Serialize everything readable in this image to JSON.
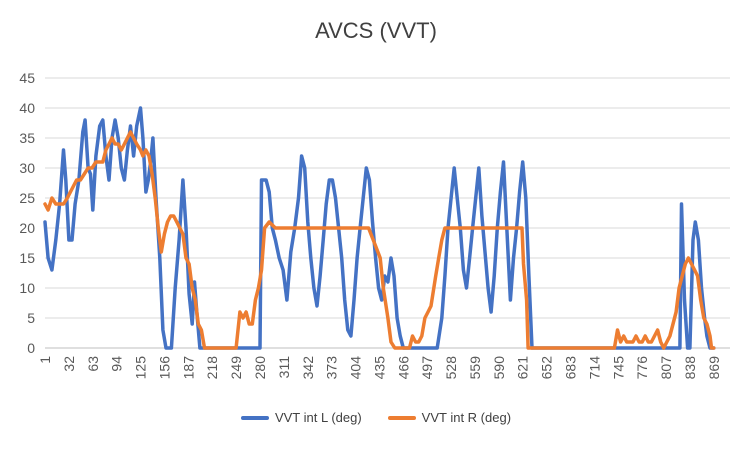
{
  "chart_data": {
    "type": "line",
    "title": "AVCS (VVT)",
    "xlabel": "",
    "ylabel": "",
    "ylim": [
      0,
      45
    ],
    "yticks": [
      0,
      5,
      10,
      15,
      20,
      25,
      30,
      35,
      40,
      45
    ],
    "xlim": [
      1,
      890
    ],
    "xticks": [
      1,
      32,
      63,
      94,
      125,
      156,
      187,
      218,
      249,
      280,
      311,
      342,
      373,
      404,
      435,
      466,
      497,
      528,
      559,
      590,
      621,
      652,
      683,
      714,
      745,
      776,
      807,
      838,
      869
    ],
    "grid": "horizontal",
    "legend": "bottom",
    "series": [
      {
        "name": "VVT int L (deg)",
        "color": "#4472C4",
        "points": [
          [
            1,
            21
          ],
          [
            5,
            15
          ],
          [
            10,
            13
          ],
          [
            15,
            18
          ],
          [
            20,
            24
          ],
          [
            25,
            33
          ],
          [
            28,
            28
          ],
          [
            32,
            18
          ],
          [
            36,
            18
          ],
          [
            40,
            24
          ],
          [
            45,
            28
          ],
          [
            50,
            36
          ],
          [
            53,
            38
          ],
          [
            57,
            30
          ],
          [
            60,
            29
          ],
          [
            63,
            23
          ],
          [
            67,
            32
          ],
          [
            72,
            37
          ],
          [
            76,
            38
          ],
          [
            80,
            32
          ],
          [
            84,
            28
          ],
          [
            88,
            35
          ],
          [
            92,
            38
          ],
          [
            96,
            35
          ],
          [
            100,
            30
          ],
          [
            104,
            28
          ],
          [
            108,
            33
          ],
          [
            112,
            37
          ],
          [
            116,
            32
          ],
          [
            120,
            37
          ],
          [
            125,
            40
          ],
          [
            128,
            35
          ],
          [
            132,
            26
          ],
          [
            135,
            28
          ],
          [
            138,
            31
          ],
          [
            141,
            35
          ],
          [
            145,
            25
          ],
          [
            150,
            15
          ],
          [
            154,
            3
          ],
          [
            158,
            0
          ],
          [
            165,
            0
          ],
          [
            170,
            10
          ],
          [
            175,
            18
          ],
          [
            180,
            28
          ],
          [
            184,
            20
          ],
          [
            188,
            9
          ],
          [
            192,
            4
          ],
          [
            195,
            11
          ],
          [
            198,
            6
          ],
          [
            202,
            0
          ],
          [
            218,
            0
          ],
          [
            249,
            0
          ],
          [
            280,
            0
          ],
          [
            282,
            28
          ],
          [
            288,
            28
          ],
          [
            292,
            26
          ],
          [
            296,
            20
          ],
          [
            300,
            18
          ],
          [
            305,
            15
          ],
          [
            310,
            13
          ],
          [
            315,
            8
          ],
          [
            320,
            16
          ],
          [
            325,
            20
          ],
          [
            330,
            25
          ],
          [
            334,
            32
          ],
          [
            338,
            30
          ],
          [
            342,
            21
          ],
          [
            346,
            15
          ],
          [
            350,
            10
          ],
          [
            354,
            7
          ],
          [
            358,
            12
          ],
          [
            362,
            18
          ],
          [
            366,
            24
          ],
          [
            370,
            28
          ],
          [
            374,
            28
          ],
          [
            378,
            25
          ],
          [
            382,
            20
          ],
          [
            386,
            15
          ],
          [
            390,
            8
          ],
          [
            394,
            3
          ],
          [
            398,
            2
          ],
          [
            402,
            8
          ],
          [
            406,
            15
          ],
          [
            410,
            20
          ],
          [
            414,
            25
          ],
          [
            418,
            30
          ],
          [
            422,
            28
          ],
          [
            426,
            21
          ],
          [
            430,
            15
          ],
          [
            434,
            10
          ],
          [
            438,
            8
          ],
          [
            442,
            12
          ],
          [
            446,
            11
          ],
          [
            450,
            15
          ],
          [
            454,
            12
          ],
          [
            458,
            5
          ],
          [
            462,
            2
          ],
          [
            466,
            0
          ],
          [
            497,
            0
          ],
          [
            510,
            0
          ],
          [
            516,
            5
          ],
          [
            520,
            12
          ],
          [
            524,
            20
          ],
          [
            528,
            25
          ],
          [
            532,
            30
          ],
          [
            536,
            25
          ],
          [
            540,
            20
          ],
          [
            544,
            13
          ],
          [
            548,
            10
          ],
          [
            552,
            15
          ],
          [
            556,
            20
          ],
          [
            560,
            25
          ],
          [
            564,
            30
          ],
          [
            568,
            22
          ],
          [
            572,
            16
          ],
          [
            576,
            10
          ],
          [
            580,
            6
          ],
          [
            584,
            12
          ],
          [
            588,
            20
          ],
          [
            592,
            26
          ],
          [
            596,
            31
          ],
          [
            600,
            21
          ],
          [
            605,
            8
          ],
          [
            609,
            15
          ],
          [
            613,
            20
          ],
          [
            617,
            26
          ],
          [
            621,
            31
          ],
          [
            625,
            25
          ],
          [
            629,
            12
          ],
          [
            633,
            0
          ],
          [
            652,
            0
          ],
          [
            683,
            0
          ],
          [
            714,
            0
          ],
          [
            745,
            0
          ],
          [
            776,
            0
          ],
          [
            807,
            0
          ],
          [
            825,
            0
          ],
          [
            827,
            24
          ],
          [
            831,
            8
          ],
          [
            835,
            0
          ],
          [
            838,
            0
          ],
          [
            842,
            18
          ],
          [
            845,
            21
          ],
          [
            849,
            18
          ],
          [
            853,
            10
          ],
          [
            857,
            5
          ],
          [
            860,
            2
          ],
          [
            864,
            0
          ],
          [
            869,
            0
          ]
        ]
      },
      {
        "name": "VVT int R (deg)",
        "color": "#ED7D31",
        "points": [
          [
            1,
            24
          ],
          [
            5,
            23
          ],
          [
            10,
            25
          ],
          [
            15,
            24
          ],
          [
            20,
            24
          ],
          [
            25,
            24
          ],
          [
            30,
            25
          ],
          [
            34,
            26
          ],
          [
            38,
            27
          ],
          [
            42,
            28
          ],
          [
            47,
            28
          ],
          [
            52,
            29
          ],
          [
            57,
            30
          ],
          [
            62,
            30
          ],
          [
            67,
            31
          ],
          [
            72,
            31
          ],
          [
            76,
            31
          ],
          [
            80,
            33
          ],
          [
            84,
            34
          ],
          [
            88,
            35
          ],
          [
            92,
            34
          ],
          [
            96,
            34
          ],
          [
            100,
            33
          ],
          [
            104,
            34
          ],
          [
            108,
            35
          ],
          [
            112,
            36
          ],
          [
            116,
            35
          ],
          [
            120,
            34
          ],
          [
            125,
            33
          ],
          [
            128,
            32
          ],
          [
            132,
            33
          ],
          [
            136,
            32
          ],
          [
            140,
            29
          ],
          [
            144,
            25
          ],
          [
            148,
            20
          ],
          [
            152,
            16
          ],
          [
            156,
            19
          ],
          [
            160,
            21
          ],
          [
            164,
            22
          ],
          [
            168,
            22
          ],
          [
            172,
            21
          ],
          [
            176,
            20
          ],
          [
            180,
            19
          ],
          [
            184,
            15
          ],
          [
            188,
            14
          ],
          [
            192,
            10
          ],
          [
            196,
            8
          ],
          [
            200,
            4
          ],
          [
            204,
            3
          ],
          [
            208,
            0
          ],
          [
            218,
            0
          ],
          [
            249,
            0
          ],
          [
            254,
            6
          ],
          [
            258,
            5
          ],
          [
            262,
            6
          ],
          [
            266,
            4
          ],
          [
            270,
            4
          ],
          [
            274,
            8
          ],
          [
            278,
            10
          ],
          [
            282,
            13
          ],
          [
            286,
            20
          ],
          [
            292,
            21
          ],
          [
            300,
            20
          ],
          [
            311,
            20
          ],
          [
            342,
            20
          ],
          [
            373,
            20
          ],
          [
            404,
            20
          ],
          [
            421,
            20
          ],
          [
            424,
            19
          ],
          [
            430,
            17
          ],
          [
            436,
            15
          ],
          [
            440,
            10
          ],
          [
            446,
            5
          ],
          [
            450,
            1
          ],
          [
            455,
            0
          ],
          [
            466,
            0
          ],
          [
            474,
            0
          ],
          [
            478,
            2
          ],
          [
            482,
            1
          ],
          [
            486,
            1
          ],
          [
            490,
            2
          ],
          [
            494,
            5
          ],
          [
            498,
            6
          ],
          [
            502,
            7
          ],
          [
            508,
            12
          ],
          [
            512,
            15
          ],
          [
            516,
            18
          ],
          [
            520,
            20
          ],
          [
            528,
            20
          ],
          [
            559,
            20
          ],
          [
            590,
            20
          ],
          [
            620,
            20
          ],
          [
            622,
            14
          ],
          [
            626,
            8
          ],
          [
            628,
            0
          ],
          [
            652,
            0
          ],
          [
            683,
            0
          ],
          [
            714,
            0
          ],
          [
            740,
            0
          ],
          [
            744,
            3
          ],
          [
            748,
            1
          ],
          [
            752,
            2
          ],
          [
            756,
            1
          ],
          [
            760,
            1
          ],
          [
            764,
            1
          ],
          [
            768,
            2
          ],
          [
            772,
            1
          ],
          [
            776,
            1
          ],
          [
            780,
            2
          ],
          [
            784,
            1
          ],
          [
            788,
            1
          ],
          [
            792,
            2
          ],
          [
            796,
            3
          ],
          [
            800,
            1
          ],
          [
            804,
            0
          ],
          [
            808,
            1
          ],
          [
            812,
            2
          ],
          [
            816,
            4
          ],
          [
            820,
            6
          ],
          [
            824,
            10
          ],
          [
            828,
            12
          ],
          [
            832,
            14
          ],
          [
            836,
            15
          ],
          [
            840,
            14
          ],
          [
            844,
            13
          ],
          [
            848,
            12
          ],
          [
            852,
            8
          ],
          [
            856,
            5
          ],
          [
            860,
            4
          ],
          [
            864,
            2
          ],
          [
            866,
            0
          ],
          [
            869,
            0
          ]
        ]
      }
    ]
  }
}
